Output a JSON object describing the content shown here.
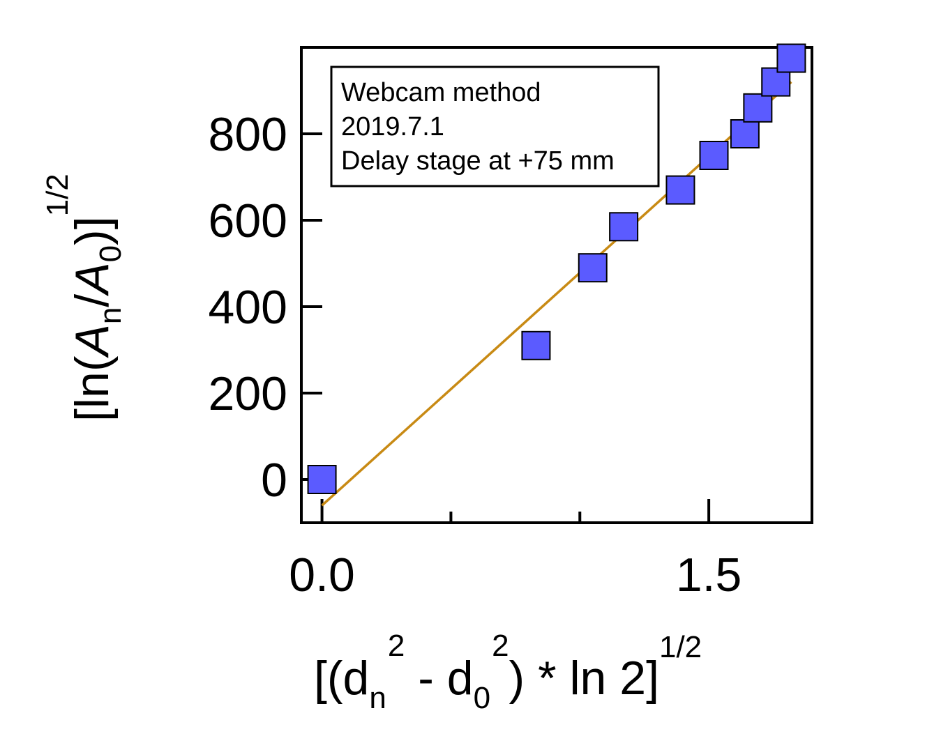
{
  "chart_data": {
    "type": "scatter",
    "xlabel": {
      "prefix": "[(d",
      "sub1": "n",
      "sup1": "2",
      "middle": " - d",
      "sub2": "0",
      "sup2": "2",
      "suffix": ") * ln 2]",
      "outer_sup": "1/2"
    },
    "ylabel": {
      "prefix": "[ln(",
      "a1": "A",
      "sub1": "n",
      "slash": "/",
      "a2": "A",
      "sub2": "0",
      "suffix": ")]",
      "outer_sup": "1/2"
    },
    "xlim": [
      -0.08,
      1.9
    ],
    "ylim": [
      -100,
      1000
    ],
    "x_ticks_major_labeled": [
      0.0,
      1.5
    ],
    "x_tick_labels": [
      "0.0",
      "1.5"
    ],
    "x_ticks_minor": [
      0.5,
      1.0
    ],
    "y_ticks": [
      0,
      200,
      400,
      600,
      800
    ],
    "y_tick_labels": [
      "0",
      "200",
      "400",
      "600",
      "800"
    ],
    "grid": false,
    "legend": {
      "placement": "top-left",
      "lines": [
        "Webcam method",
        "2019.7.1",
        "Delay stage at +75 mm"
      ]
    },
    "series": [
      {
        "kind": "points",
        "marker": "square",
        "color": "#5b5bff",
        "x": [
          0.0,
          0.83,
          1.05,
          1.17,
          1.39,
          1.52,
          1.64,
          1.69,
          1.76,
          1.82
        ],
        "y": [
          0,
          310,
          490,
          585,
          670,
          750,
          800,
          860,
          920,
          975
        ]
      },
      {
        "kind": "fit-line",
        "color": "#c88a14",
        "x": [
          0.0,
          1.82
        ],
        "y": [
          -60,
          920
        ]
      }
    ]
  }
}
